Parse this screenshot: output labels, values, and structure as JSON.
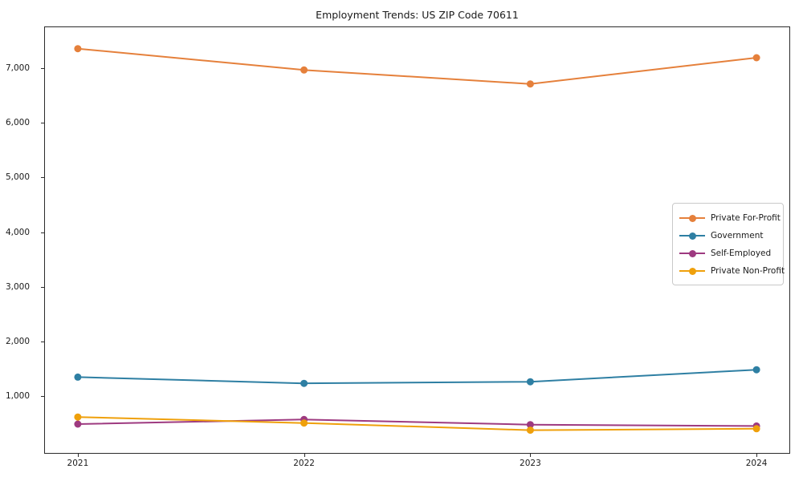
{
  "title": "Employment Trends: US ZIP Code 70611",
  "axes": {
    "xtick_labels": [
      "2021",
      "2022",
      "2023",
      "2024"
    ],
    "ytick_labels": [
      "1,000",
      "2,000",
      "3,000",
      "4,000",
      "5,000",
      "6,000",
      "7,000"
    ]
  },
  "legend": {
    "items": [
      "Private For-Profit",
      "Government",
      "Self-Employed",
      "Private Non-Profit"
    ]
  },
  "colors": {
    "private_for_profit": "#E5803B",
    "government": "#2E7FA3",
    "self_employed": "#9E3A80",
    "private_non_profit": "#EFA00B",
    "spine": "#2b2b2b",
    "text": "#1a1a1a"
  },
  "chart_data": {
    "type": "line",
    "title": "Employment Trends: US ZIP Code 70611",
    "xlabel": "",
    "ylabel": "",
    "x": [
      2021,
      2022,
      2023,
      2024
    ],
    "series": [
      {
        "name": "Private For-Profit",
        "color": "#E5803B",
        "values": [
          7355,
          6965,
          6710,
          7190
        ]
      },
      {
        "name": "Government",
        "color": "#2E7FA3",
        "values": [
          1350,
          1235,
          1265,
          1485
        ]
      },
      {
        "name": "Self-Employed",
        "color": "#9E3A80",
        "values": [
          490,
          575,
          480,
          455
        ]
      },
      {
        "name": "Private Non-Profit",
        "color": "#EFA00B",
        "values": [
          620,
          510,
          380,
          405
        ]
      }
    ],
    "xlim": [
      2020.855,
      2024.145
    ],
    "ylim": [
      -37,
      7747
    ],
    "yticks": [
      1000,
      2000,
      3000,
      4000,
      5000,
      6000,
      7000
    ],
    "xticks": [
      2021,
      2022,
      2023,
      2024
    ],
    "grid": false,
    "legend_position": "center right",
    "marker": "circle",
    "marker_radius": 4.5,
    "line_width": 2
  }
}
